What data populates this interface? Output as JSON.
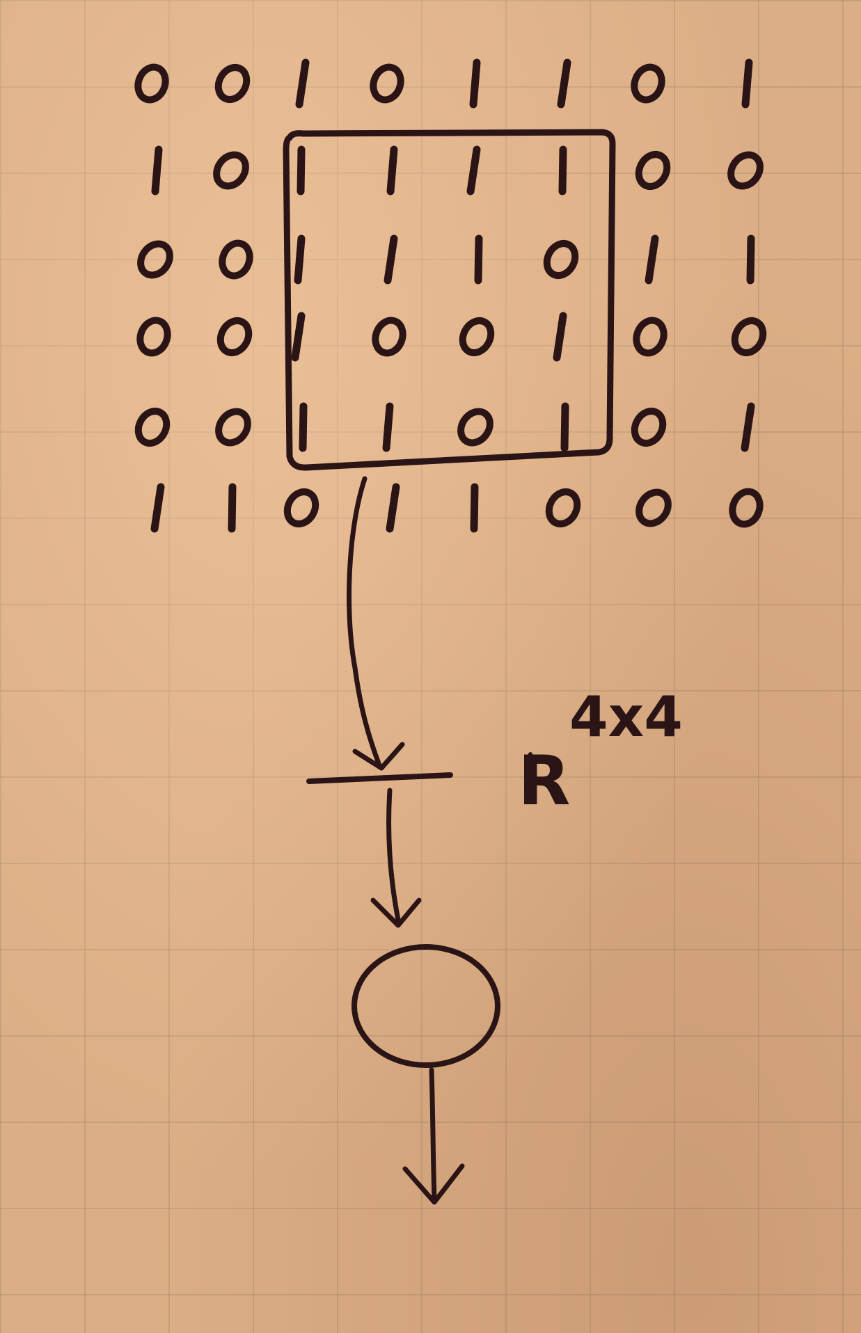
{
  "grid": {
    "rows": [
      [
        "0",
        "0",
        "1",
        "0",
        "1",
        "1",
        "0",
        "1"
      ],
      [
        "1",
        "0",
        "1",
        "1",
        "1",
        "1",
        "0",
        "0"
      ],
      [
        "0",
        "0",
        "1",
        "1",
        "1",
        "0",
        "1",
        "1"
      ],
      [
        "0",
        "0",
        "1",
        "0",
        "0",
        "1",
        "0",
        "0"
      ],
      [
        "0",
        "0",
        "1",
        "1",
        "0",
        "1",
        "0",
        "1"
      ],
      [
        "1",
        "1",
        "0",
        "1",
        "1",
        "0",
        "0",
        "0"
      ]
    ]
  },
  "output_label": {
    "base": "R",
    "exponent": "4x4"
  },
  "colors": {
    "ink": "#2a1416",
    "paper": "#dcae85",
    "grid_lines": "#aa8c73"
  }
}
